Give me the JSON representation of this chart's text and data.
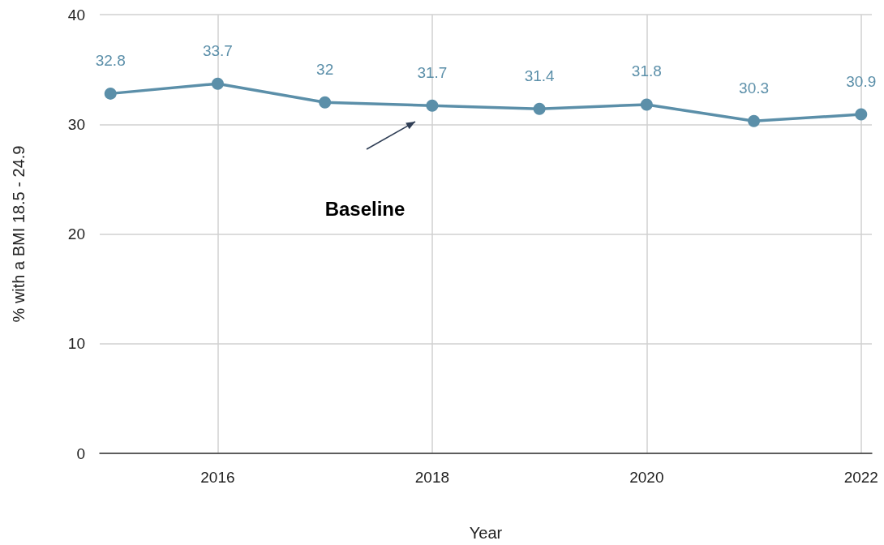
{
  "chart_data": {
    "type": "line",
    "xlabel": "Year",
    "ylabel": "% with a BMI 18.5 - 24.9",
    "x": [
      2015,
      2016,
      2017,
      2018,
      2019,
      2020,
      2021,
      2022
    ],
    "series": [
      {
        "color": "#5b8fa9",
        "values": [
          32.8,
          33.7,
          32,
          31.7,
          31.4,
          31.8,
          30.3,
          30.9
        ]
      }
    ],
    "xlim": [
      2014.9,
      2022.1
    ],
    "xticks": [
      2016,
      2018,
      2020,
      2022
    ],
    "ylim": [
      0,
      40
    ],
    "yticks": [
      0,
      10,
      20,
      30,
      40
    ],
    "grid": true,
    "marker": "circle",
    "line_style": "solid",
    "data_labels": true,
    "annotations": [
      "Baseline"
    ]
  }
}
